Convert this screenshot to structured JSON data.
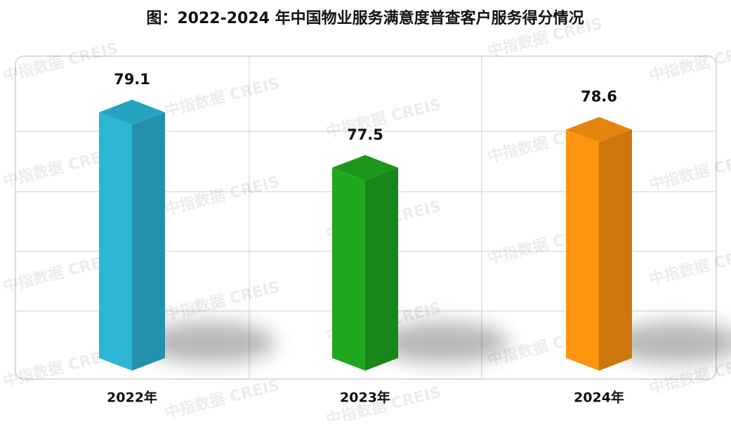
{
  "chart_data": {
    "type": "bar3d",
    "title": "图：2022-2024 年中国物业服务满意度普查客户服务得分情况",
    "categories": [
      "2022年",
      "2023年",
      "2024年"
    ],
    "values": [
      79.1,
      77.5,
      78.6
    ],
    "colors": [
      "#2bb6d6",
      "#1fa81f",
      "#ff9410"
    ],
    "ylim": [
      72,
      80.5
    ],
    "watermark": "中指数据 CREIS"
  }
}
